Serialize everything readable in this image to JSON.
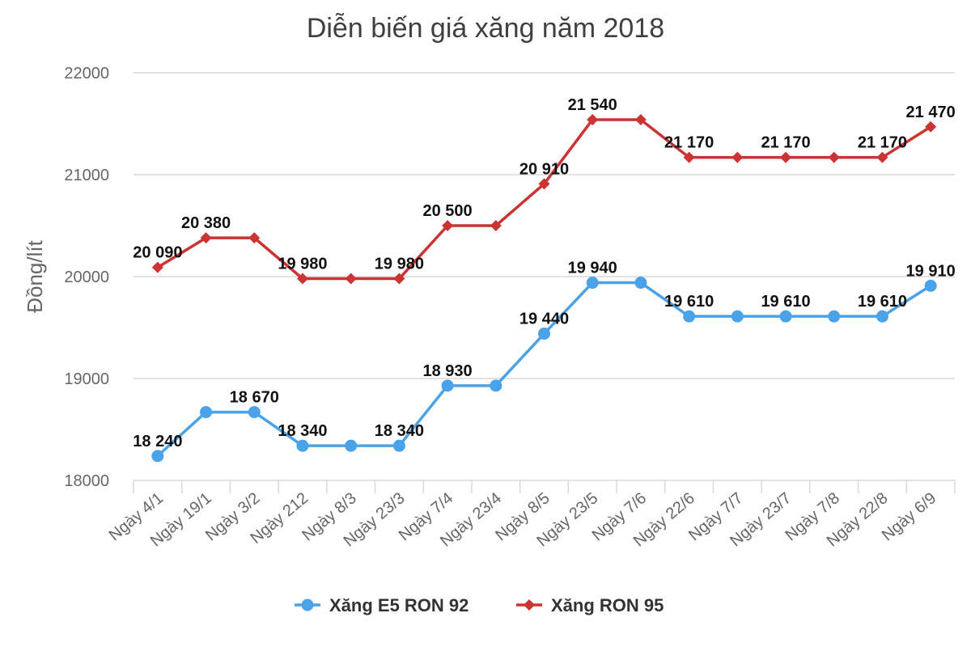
{
  "chart_data": {
    "type": "line",
    "title": "Diễn biến giá xăng năm 2018",
    "ylabel": "Đồng/lít",
    "xlabel": "",
    "ylim": [
      18000,
      22000
    ],
    "yticks": [
      18000,
      19000,
      20000,
      21000,
      22000
    ],
    "grid": true,
    "legend_position": "bottom",
    "categories": [
      "Ngày 4/1",
      "Ngày 19/1",
      "Ngày 3/2",
      "Ngày 212",
      "Ngày 8/3",
      "Ngày 23/3",
      "Ngày 7/4",
      "Ngày 23/4",
      "Ngày 8/5",
      "Ngày 23/5",
      "Ngày 7/6",
      "Ngày 22/6",
      "Ngày 7/7",
      "Ngày 23/7",
      "Ngày 7/8",
      "Ngày 22/8",
      "Ngày 6/9"
    ],
    "series": [
      {
        "name": "Xăng E5 RON 92",
        "color": "#4aa3e8",
        "marker": "circle",
        "values": [
          18240,
          18670,
          18670,
          18340,
          18340,
          18340,
          18930,
          18930,
          19440,
          19940,
          19940,
          19610,
          19610,
          19610,
          19610,
          19610,
          19910
        ],
        "data_labels": [
          "18 240",
          "",
          "18 670",
          "18 340",
          "",
          "18 340",
          "18 930",
          "",
          "19 440",
          "19 940",
          "",
          "19 610",
          "",
          "19 610",
          "",
          "19 610",
          "19 910"
        ]
      },
      {
        "name": "Xăng RON 95",
        "color": "#cc3333",
        "marker": "diamond",
        "values": [
          20090,
          20380,
          20380,
          19980,
          19980,
          19980,
          20500,
          20500,
          20910,
          21540,
          21540,
          21170,
          21170,
          21170,
          21170,
          21170,
          21470
        ],
        "data_labels": [
          "20 090",
          "20 380",
          "",
          "19 980",
          "",
          "19 980",
          "20 500",
          "",
          "20 910",
          "21 540",
          "",
          "21 170",
          "",
          "21 170",
          "",
          "21 170",
          "21 470"
        ]
      }
    ]
  }
}
